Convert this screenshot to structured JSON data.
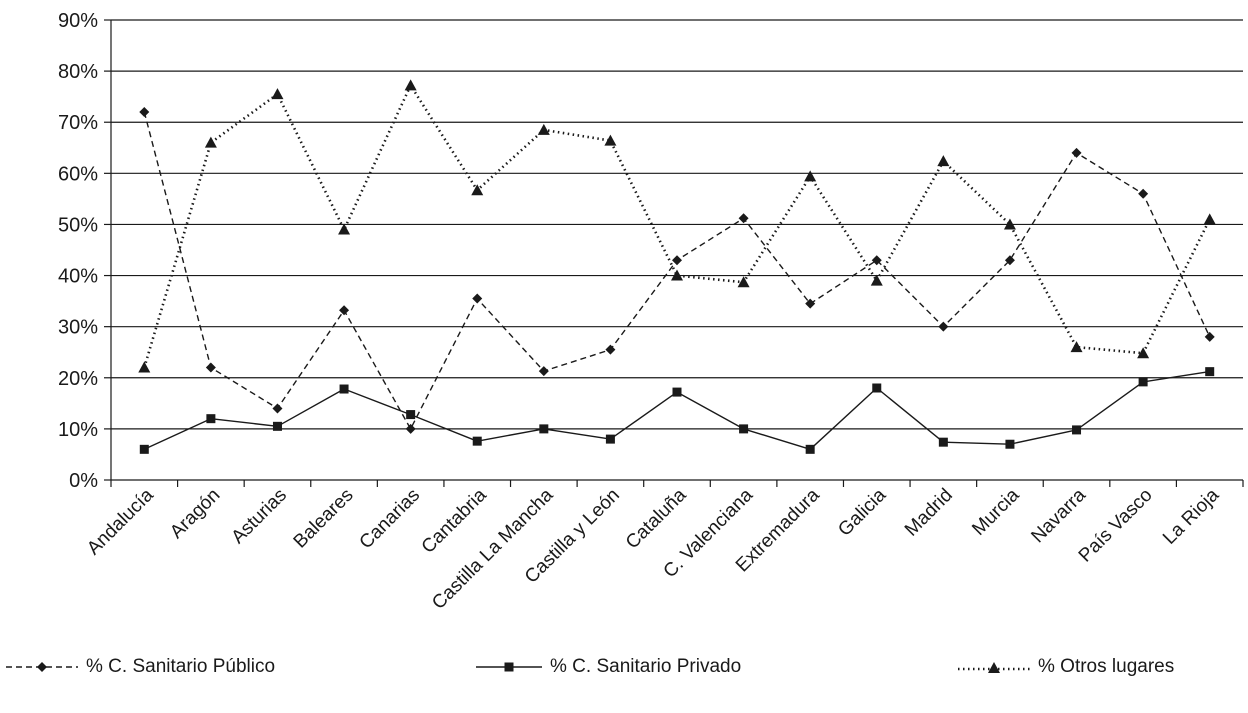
{
  "chart_data": {
    "type": "line",
    "title": "",
    "xlabel": "",
    "ylabel": "",
    "ylim": [
      0,
      90
    ],
    "y_ticks": [
      "0%",
      "10%",
      "20%",
      "30%",
      "40%",
      "50%",
      "60%",
      "70%",
      "80%",
      "90%"
    ],
    "categories": [
      "Andalucía",
      "Aragón",
      "Asturias",
      "Baleares",
      "Canarias",
      "Cantabria",
      "Castilla La Mancha",
      "Castilla y León",
      "Cataluña",
      "C. Valenciana",
      "Extremadura",
      "Galicia",
      "Madrid",
      "Murcia",
      "Navarra",
      "País Vasco",
      "La Rioja"
    ],
    "grid": "horizontal",
    "legend_position": "bottom",
    "series": [
      {
        "name": "% C. Sanitario Público",
        "line_style": "dashed",
        "marker": "diamond",
        "values": [
          72,
          22,
          14,
          33.2,
          10,
          35.5,
          21.3,
          25.5,
          43,
          51.2,
          34.5,
          43,
          30,
          43,
          64,
          56,
          28
        ]
      },
      {
        "name": "% C. Sanitario Privado",
        "line_style": "solid",
        "marker": "square",
        "values": [
          6,
          12,
          10.5,
          17.8,
          12.8,
          7.6,
          10,
          8,
          17.2,
          10,
          6,
          18,
          7.4,
          7,
          9.8,
          19.2,
          21.2
        ]
      },
      {
        "name": "% Otros lugares",
        "line_style": "dotted",
        "marker": "triangle",
        "values": [
          22,
          66,
          75.5,
          49,
          77.2,
          56.7,
          68.5,
          66.4,
          40,
          38.7,
          59.4,
          39,
          62.4,
          50,
          26,
          24.8,
          51
        ]
      }
    ]
  }
}
